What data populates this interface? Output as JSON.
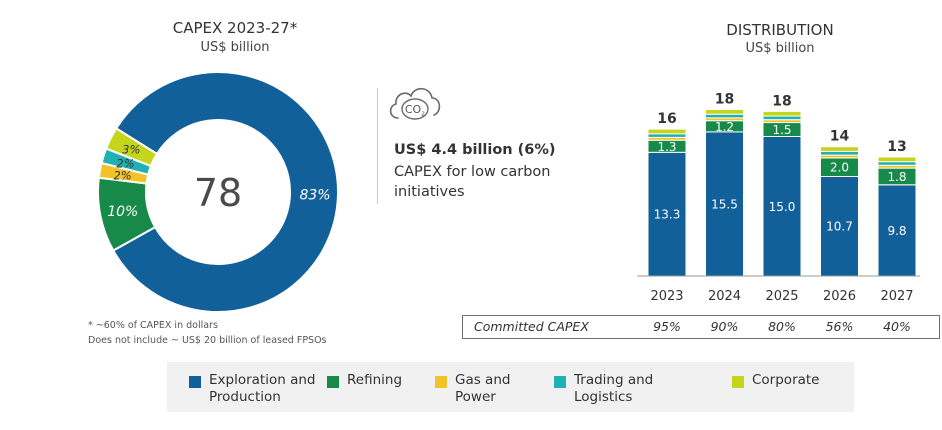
{
  "colors": {
    "exploration": "#11609a",
    "refining": "#178a4a",
    "gas": "#f3c227",
    "trading": "#1fb1b3",
    "corporate": "#c5d51c"
  },
  "donut": {
    "title": "CAPEX 2023-27*",
    "unit": "US$ billion",
    "center_value": "78"
  },
  "footnotes": [
    "* ~60% of CAPEX in dollars",
    "Does not include ~ US$ 20 billion of leased FPSOs"
  ],
  "low_carbon": {
    "icon": "co2-cloud-icon",
    "amount": "US$ 4.4 billion (6%)",
    "description": "CAPEX for low carbon initiatives"
  },
  "distribution": {
    "title": "DISTRIBUTION",
    "unit": "US$ billion"
  },
  "committed": {
    "label": "Committed CAPEX",
    "values": [
      "95%",
      "90%",
      "80%",
      "56%",
      "40%"
    ]
  },
  "legend": [
    {
      "key": "exploration",
      "label": "Exploration and Production"
    },
    {
      "key": "refining",
      "label": "Refining"
    },
    {
      "key": "gas",
      "label": "Gas and Power"
    },
    {
      "key": "trading",
      "label": "Trading and Logistics"
    },
    {
      "key": "corporate",
      "label": "Corporate"
    }
  ],
  "chart_data": [
    {
      "type": "pie",
      "title": "CAPEX 2023-27*",
      "subtitle": "US$ billion",
      "total": 78,
      "labels": [
        "Exploration and Production",
        "Refining",
        "Gas and Power",
        "Trading and Logistics",
        "Corporate"
      ],
      "values": [
        83,
        10,
        2,
        2,
        3
      ],
      "value_labels": [
        "83%",
        "10%",
        "2%",
        "2%",
        "3%"
      ],
      "series_keys": [
        "exploration",
        "refining",
        "gas",
        "trading",
        "corporate"
      ]
    },
    {
      "type": "bar",
      "stacked": true,
      "title": "DISTRIBUTION",
      "subtitle": "US$ billion",
      "categories": [
        "2023",
        "2024",
        "2025",
        "2026",
        "2027"
      ],
      "totals": [
        "16",
        "18",
        "18",
        "14",
        "13"
      ],
      "series": [
        {
          "name": "Exploration and Production",
          "key": "exploration",
          "values": [
            13.3,
            15.5,
            15.0,
            10.7,
            9.8
          ],
          "show_labels": true
        },
        {
          "name": "Refining",
          "key": "refining",
          "values": [
            1.3,
            1.2,
            1.5,
            2.0,
            1.8
          ],
          "show_labels": true
        },
        {
          "name": "Gas and Power",
          "key": "gas",
          "values": [
            0.3,
            0.3,
            0.3,
            0.3,
            0.3
          ],
          "show_labels": false
        },
        {
          "name": "Trading and Logistics",
          "key": "trading",
          "values": [
            0.4,
            0.4,
            0.4,
            0.4,
            0.4
          ],
          "show_labels": false
        },
        {
          "name": "Corporate",
          "key": "corporate",
          "values": [
            0.5,
            0.5,
            0.5,
            0.5,
            0.5
          ],
          "show_labels": false
        }
      ],
      "ylim": [
        0,
        19
      ]
    }
  ]
}
